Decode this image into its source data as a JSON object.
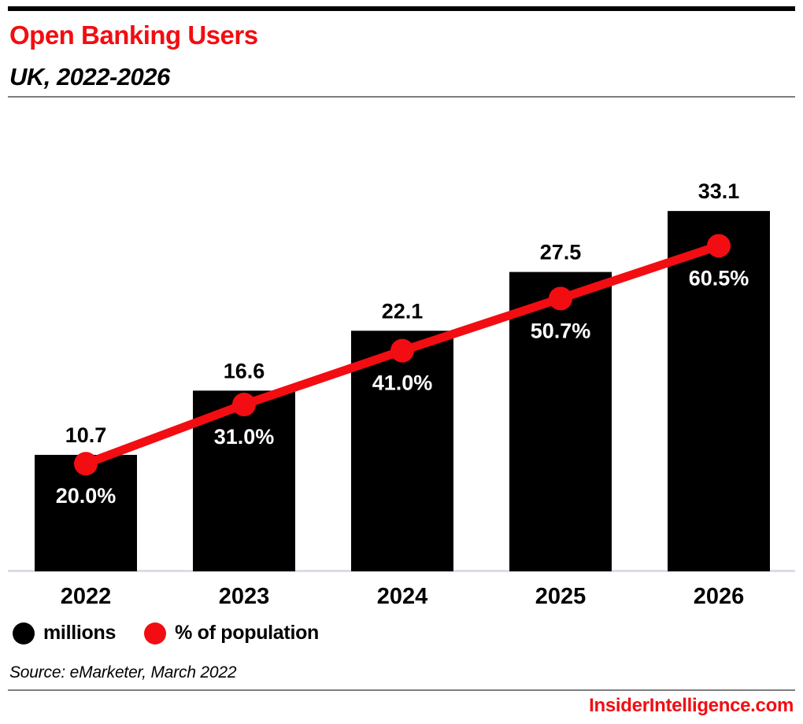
{
  "header": {
    "title": "Open Banking Users",
    "subtitle": "UK, 2022-2026"
  },
  "chart_data": {
    "type": "combo",
    "title": "Open Banking Users",
    "subtitle": "UK, 2022-2026",
    "categories": [
      "2022",
      "2023",
      "2024",
      "2025",
      "2026"
    ],
    "series": [
      {
        "name": "millions",
        "type": "bar",
        "color": "#000000",
        "values": [
          10.7,
          16.6,
          22.1,
          27.5,
          33.1
        ],
        "labels": [
          "10.7",
          "16.6",
          "22.1",
          "27.5",
          "33.1"
        ]
      },
      {
        "name": "% of population",
        "type": "line",
        "color": "#f20d12",
        "values": [
          20.0,
          31.0,
          41.0,
          50.7,
          60.5
        ],
        "labels": [
          "20.0%",
          "31.0%",
          "41.0%",
          "50.7%",
          "60.5%"
        ]
      }
    ],
    "bar_axis": {
      "min": 0,
      "max": 34.7,
      "visible": false
    },
    "line_axis": {
      "min": 0,
      "max": 70.2,
      "visible": false
    },
    "grid": false,
    "x_axis_line": true,
    "legend_position": "bottom-left",
    "value_labels": "above bars (black) and below line dots (white)"
  },
  "legend": {
    "items": [
      {
        "label": "millions",
        "color": "#000000"
      },
      {
        "label": "% of population",
        "color": "#f20d12"
      }
    ]
  },
  "source": "Source: eMarketer, March 2022",
  "footer": {
    "site": "InsiderIntelligence.com"
  },
  "colors": {
    "accent_red": "#f20d12",
    "bar_black": "#000000",
    "axis_line": "#d9dde9",
    "divider_gray": "#7d7d7d",
    "accent_bar_black": "#000000"
  }
}
